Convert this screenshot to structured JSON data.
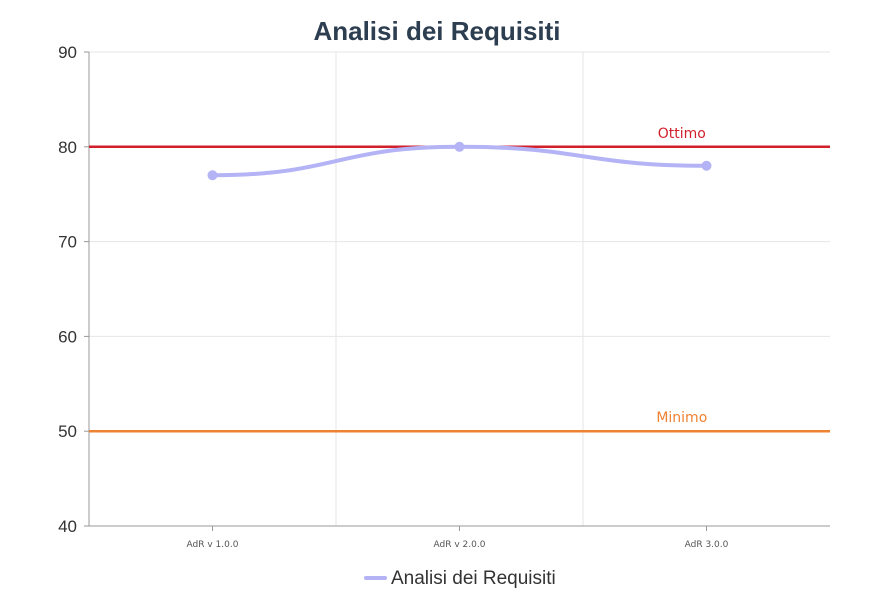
{
  "chart_data": {
    "type": "line",
    "title": "Analisi dei Requisiti",
    "categories": [
      "AdR v 1.0.0",
      "AdR v 2.0.0",
      "AdR 3.0.0"
    ],
    "series": [
      {
        "name": "Analisi dei Requisiti",
        "values": [
          77,
          80,
          78
        ],
        "color": "#b3b3f5"
      }
    ],
    "ylim": [
      40,
      90
    ],
    "yticks": [
      40,
      50,
      60,
      70,
      80,
      90
    ],
    "ytick_labels": [
      "40",
      "50",
      "60",
      "70",
      "80",
      "90"
    ],
    "grid": true,
    "reference_lines": [
      {
        "label": "Ottimo",
        "value": 80,
        "color": "#d21f2c"
      },
      {
        "label": "Minimo",
        "value": 50,
        "color": "#ee8233"
      }
    ],
    "legend": {
      "position": "bottom",
      "label": "Analisi dei Requisiti"
    },
    "xlabel": "",
    "ylabel": ""
  }
}
